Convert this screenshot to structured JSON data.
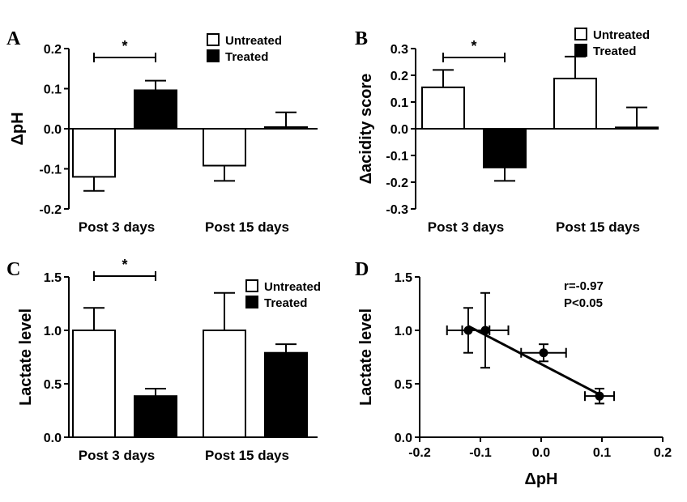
{
  "chart_data": [
    {
      "panel": "A",
      "type": "bar",
      "ylabel": "ΔpH",
      "ylim": [
        -0.2,
        0.2
      ],
      "yticks": [
        "-0.2",
        "-0.1",
        "0.0",
        "0.1",
        "0.2"
      ],
      "categories": [
        "Post 3 days",
        "Post 15 days"
      ],
      "legend": "top-right",
      "series": [
        {
          "name": "Untreated",
          "color": "#ffffff",
          "values": [
            -0.12,
            -0.092
          ],
          "errors": [
            0.035,
            0.038
          ]
        },
        {
          "name": "Treated",
          "color": "#000000",
          "values": [
            0.096,
            0.004
          ],
          "errors": [
            0.024,
            0.037
          ]
        }
      ],
      "significance": [
        {
          "label": "*",
          "group": "Post 3 days"
        }
      ]
    },
    {
      "panel": "B",
      "type": "bar",
      "ylabel": "Δacidity score",
      "ylim": [
        -0.3,
        0.3
      ],
      "yticks": [
        "-0.3",
        "-0.2",
        "-0.1",
        "0.0",
        "0.1",
        "0.2",
        "0.3"
      ],
      "categories": [
        "Post 3 days",
        "Post 15 days"
      ],
      "legend": "top-right",
      "series": [
        {
          "name": "Untreated",
          "color": "#ffffff",
          "values": [
            0.155,
            0.188
          ],
          "errors": [
            0.065,
            0.082
          ]
        },
        {
          "name": "Treated",
          "color": "#000000",
          "values": [
            -0.145,
            0.005
          ],
          "errors": [
            0.05,
            0.075
          ]
        }
      ],
      "significance": [
        {
          "label": "*",
          "group": "Post 3 days"
        }
      ]
    },
    {
      "panel": "C",
      "type": "bar",
      "ylabel": "Lactate level",
      "ylim": [
        0.0,
        1.5
      ],
      "yticks": [
        "0.0",
        "0.5",
        "1.0",
        "1.5"
      ],
      "categories": [
        "Post 3 days",
        "Post 15 days"
      ],
      "legend": "top-right",
      "series": [
        {
          "name": "Untreated",
          "color": "#ffffff",
          "values": [
            1.0,
            1.0
          ],
          "errors": [
            0.21,
            0.35
          ]
        },
        {
          "name": "Treated",
          "color": "#000000",
          "values": [
            0.385,
            0.79
          ],
          "errors": [
            0.07,
            0.08
          ]
        }
      ],
      "significance": [
        {
          "label": "*",
          "group": "Post 3 days"
        }
      ]
    },
    {
      "panel": "D",
      "type": "scatter",
      "xlabel": "ΔpH",
      "ylabel": "Lactate level",
      "xlim": [
        -0.2,
        0.2
      ],
      "ylim": [
        0.0,
        1.5
      ],
      "xticks": [
        "-0.2",
        "-0.1",
        "0.0",
        "0.1",
        "0.2"
      ],
      "yticks": [
        "0.0",
        "0.5",
        "1.0",
        "1.5"
      ],
      "points": [
        {
          "x": -0.12,
          "y": 1.0,
          "xerr": 0.035,
          "yerr": 0.21
        },
        {
          "x": -0.092,
          "y": 1.0,
          "xerr": 0.038,
          "yerr": 0.35
        },
        {
          "x": 0.004,
          "y": 0.79,
          "xerr": 0.037,
          "yerr": 0.08
        },
        {
          "x": 0.096,
          "y": 0.385,
          "xerr": 0.024,
          "yerr": 0.07
        }
      ],
      "fit_line": {
        "x": [
          -0.12,
          0.096
        ],
        "y": [
          1.04,
          0.4
        ]
      },
      "annotations": [
        "r=-0.97",
        "P<0.05"
      ]
    }
  ]
}
